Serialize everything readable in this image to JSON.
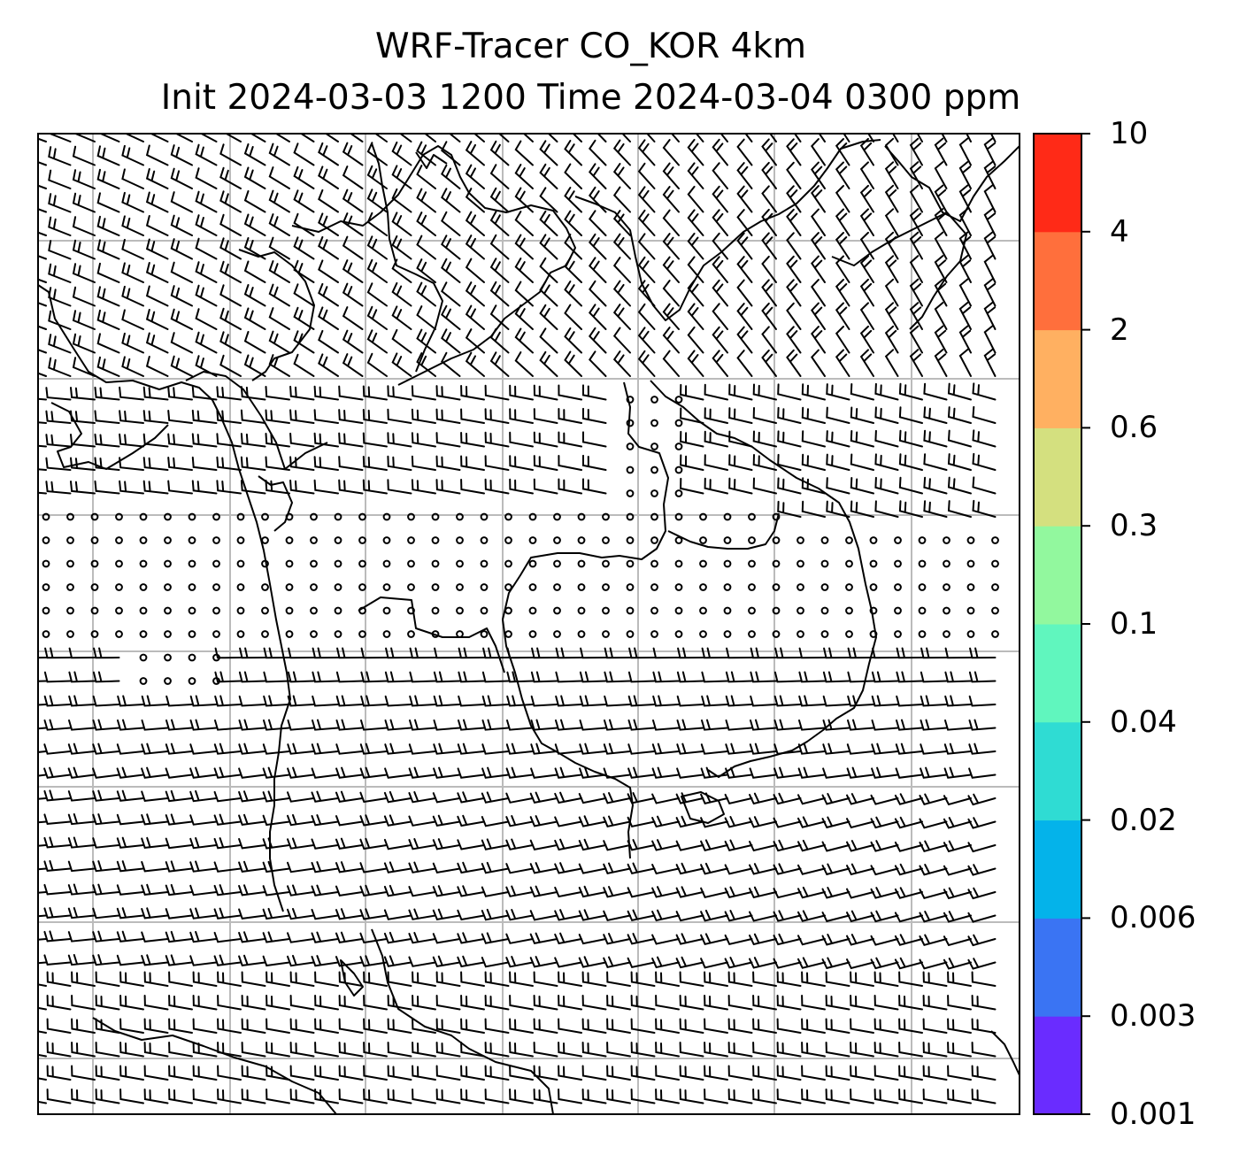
{
  "title": {
    "line1": "WRF-Tracer CO_KOR 4km",
    "line2": "Init 2024-03-03 1200 Time 2024-03-04 0300 ppm"
  },
  "colorbar": {
    "ticks": [
      "0.001",
      "0.003",
      "0.006",
      "0.02",
      "0.04",
      "0.1",
      "0.3",
      "0.6",
      "2",
      "4",
      "10"
    ],
    "colors": [
      "#6a2cff",
      "#3a74f3",
      "#04b3ea",
      "#2fdcd3",
      "#60f6be",
      "#92f89e",
      "#d4e07f",
      "#ffb061",
      "#ff6f3c",
      "#ff2a17"
    ]
  },
  "map": {
    "grid_color": "#bbbbbb",
    "coast_color": "#000000",
    "barb_color": "#000000"
  }
}
